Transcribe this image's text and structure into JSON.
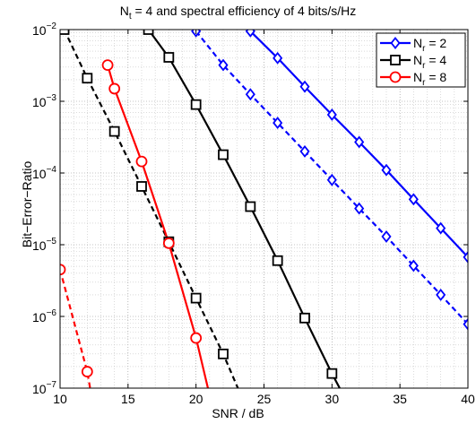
{
  "chart_data": {
    "type": "line",
    "title": {
      "pre": "N",
      "sub": "t",
      "post": " = 4 and spectral efficiency of 4 bits/s/Hz"
    },
    "xlabel": "SNR / dB",
    "ylabel": "Bit−Error−Ratio",
    "xlim": [
      10,
      40
    ],
    "ylim": [
      1e-07,
      0.01
    ],
    "yscale": "log",
    "grid": true,
    "legend_position": "top-right",
    "xticks": [
      "10",
      "15",
      "20",
      "25",
      "30",
      "35",
      "40"
    ],
    "yticks": [
      {
        "base": "10",
        "exp": "−2"
      },
      {
        "base": "10",
        "exp": "−3"
      },
      {
        "base": "10",
        "exp": "−4"
      },
      {
        "base": "10",
        "exp": "−5"
      },
      {
        "base": "10",
        "exp": "−6"
      },
      {
        "base": "10",
        "exp": "−7"
      }
    ],
    "legend": [
      {
        "pre": "N",
        "sub": "r",
        "post": " = 2",
        "color": "#0000ff",
        "marker": "diamond"
      },
      {
        "pre": "N",
        "sub": "r",
        "post": " = 4",
        "color": "#000000",
        "marker": "square"
      },
      {
        "pre": "N",
        "sub": "r",
        "post": " = 8",
        "color": "#ff0000",
        "marker": "circle"
      }
    ],
    "series": [
      {
        "color": "#0000ff",
        "marker": "diamond",
        "style": "solid",
        "points": [
          [
            24,
            0.0095
          ],
          [
            26,
            0.004
          ],
          [
            28,
            0.0016
          ],
          [
            30,
            0.00065
          ],
          [
            32,
            0.00027
          ],
          [
            34,
            0.00011
          ],
          [
            36,
            4.3e-05
          ],
          [
            38,
            1.7e-05
          ],
          [
            40,
            6.7e-06
          ]
        ]
      },
      {
        "color": "#0000ff",
        "marker": "diamond",
        "style": "dashed",
        "points": [
          [
            20,
            0.0095
          ],
          [
            22,
            0.0032
          ],
          [
            24,
            0.00125
          ],
          [
            26,
            0.0005
          ],
          [
            28,
            0.0002
          ],
          [
            30,
            8e-05
          ],
          [
            32,
            3.2e-05
          ],
          [
            34,
            1.3e-05
          ],
          [
            36,
            5.1e-06
          ],
          [
            38,
            2e-06
          ],
          [
            40,
            7.8e-07
          ]
        ]
      },
      {
        "color": "#000000",
        "marker": "square",
        "style": "solid",
        "points": [
          [
            16.5,
            0.01
          ],
          [
            18,
            0.0041
          ],
          [
            20,
            0.0009
          ],
          [
            22,
            0.00018
          ],
          [
            24,
            3.4e-05
          ],
          [
            26,
            6e-06
          ],
          [
            28,
            9.5e-07
          ],
          [
            30,
            1.6e-07
          ],
          [
            31,
            7e-08
          ]
        ]
      },
      {
        "color": "#000000",
        "marker": "square",
        "style": "dashed",
        "points": [
          [
            10.3,
            0.01
          ],
          [
            12,
            0.0021
          ],
          [
            14,
            0.00038
          ],
          [
            16,
            6.5e-05
          ],
          [
            18,
            1.1e-05
          ],
          [
            20,
            1.8e-06
          ],
          [
            22,
            3e-07
          ],
          [
            23.3,
            8e-08
          ]
        ]
      },
      {
        "color": "#ff0000",
        "marker": "circle",
        "style": "solid",
        "points": [
          [
            13.5,
            0.0032
          ],
          [
            14,
            0.0015
          ],
          [
            16,
            0.000145
          ],
          [
            18,
            1.05e-05
          ],
          [
            20,
            5e-07
          ],
          [
            21,
            8e-08
          ]
        ]
      },
      {
        "color": "#ff0000",
        "marker": "circle",
        "style": "dashed",
        "points": [
          [
            10,
            4.5e-06
          ],
          [
            12,
            1.7e-07
          ],
          [
            12.3,
            8e-08
          ]
        ]
      }
    ]
  }
}
